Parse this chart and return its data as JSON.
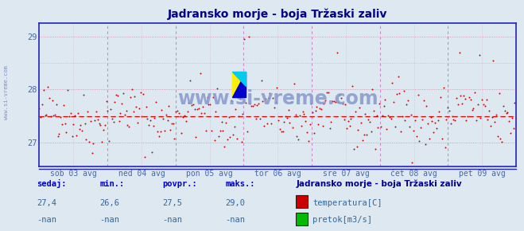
{
  "title": "Jadransko morje - boja Tržaski zaliv",
  "bg_color": "#dde8f0",
  "plot_bg_color": "#dde8f0",
  "y_min": 26.55,
  "y_max": 29.25,
  "y_ticks": [
    27,
    28,
    29
  ],
  "x_labels": [
    "sob 03 avg",
    "ned 04 avg",
    "pon 05 avg",
    "tor 06 avg",
    "sre 07 avg",
    "čet 08 avg",
    "pet 09 avg"
  ],
  "avg_line_y": 27.5,
  "avg_line_color": "#dd0000",
  "border_color": "#2222bb",
  "grid_h_color": "#cc88aa",
  "grid_v_color": "#cc88cc",
  "title_color": "#000088",
  "tick_color": "#4466aa",
  "watermark": "www.si-vreme.com",
  "watermark_color": "#8899cc",
  "side_watermark_color": "#7788bb",
  "footer_label_color": "#0000cc",
  "footer_value_color": "#336699",
  "footer_title_color": "#000088",
  "sedaj_label": "sedaj:",
  "min_label": "min.:",
  "povpr_label": "povpr.:",
  "maks_label": "maks.:",
  "sedaj_val": "27,4",
  "min_val": "26,6",
  "povpr_val": "27,5",
  "maks_val": "29,0",
  "nan_val": "-nan",
  "legend_title": "Jadransko morje - boja Tržaski zaliv",
  "legend_temp_label": "temperatura[C]",
  "legend_pretok_label": "pretok[m3/s]",
  "temp_color": "#cc0000",
  "pretok_color": "#00bb00",
  "scatter_color": "#cc0000",
  "n_points": 336,
  "figsize": [
    6.59,
    2.9
  ],
  "dpi": 100
}
